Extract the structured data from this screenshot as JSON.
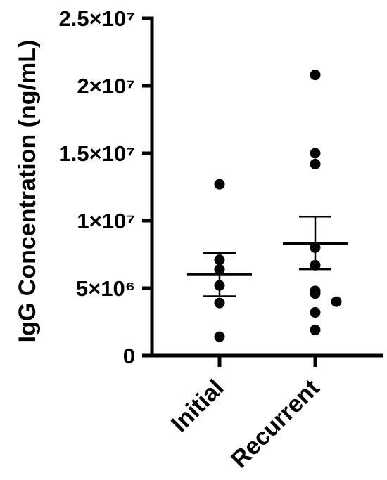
{
  "chart_data": {
    "type": "scatter",
    "title": "",
    "xlabel": "",
    "ylabel": "IgG Concentration (ng/mL)",
    "ylim": [
      0,
      25000000
    ],
    "yticks": [
      {
        "value": 0,
        "label": "0"
      },
      {
        "value": 5000000,
        "label": "5×10⁶"
      },
      {
        "value": 10000000,
        "label": "1×10⁷"
      },
      {
        "value": 15000000,
        "label": "1.5×10⁷"
      },
      {
        "value": 20000000,
        "label": "2×10⁷"
      },
      {
        "value": 25000000,
        "label": "2.5×10⁷"
      }
    ],
    "categories": [
      "Initial",
      "Recurrent"
    ],
    "series": [
      {
        "category": "Initial",
        "points": [
          12700000,
          7100000,
          6400000,
          5200000,
          3900000,
          1400000
        ],
        "mean": 6000000,
        "sem": [
          4400000,
          7600000
        ]
      },
      {
        "category": "Recurrent",
        "points": [
          20800000,
          15000000,
          14200000,
          8000000,
          6700000,
          4800000,
          4600000,
          4000000,
          3200000,
          1900000
        ],
        "mean": 8300000,
        "sem": [
          6400000,
          10300000
        ]
      }
    ],
    "grid": false,
    "legend": "none"
  }
}
